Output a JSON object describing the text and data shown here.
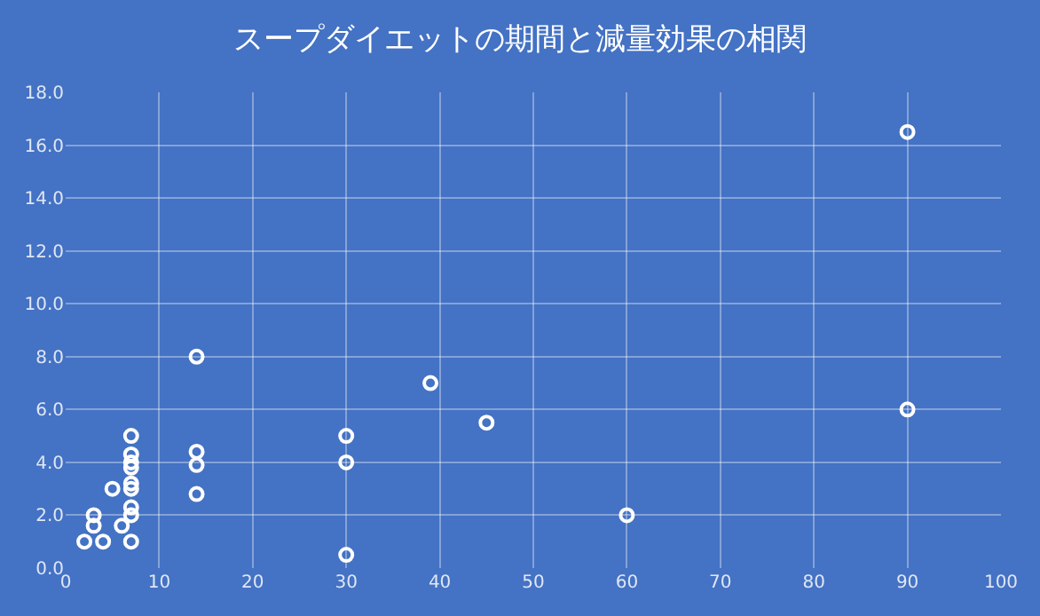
{
  "chart_data": {
    "type": "scatter",
    "title": "スープダイエットの期間と減量効果の相関",
    "x": [
      2,
      4,
      7,
      3,
      3,
      5,
      6,
      7,
      7,
      7,
      7,
      7,
      7,
      7,
      7,
      14,
      14,
      14,
      14,
      30,
      30,
      30,
      39,
      45,
      60,
      90,
      90
    ],
    "series": [
      {
        "color": "#ffffff",
        "values": [
          1.0,
          1.0,
          1.0,
          2.0,
          1.6,
          3.0,
          1.6,
          2.0,
          2.3,
          3.0,
          3.2,
          3.8,
          4.0,
          4.3,
          5.0,
          4.4,
          3.9,
          2.8,
          8.0,
          5.0,
          4.0,
          0.5,
          7.0,
          5.5,
          2.0,
          16.5,
          6.0
        ]
      }
    ],
    "xlim": [
      0,
      100
    ],
    "xticks": [
      0,
      10,
      20,
      30,
      40,
      50,
      60,
      70,
      80,
      90,
      100
    ],
    "ylim": [
      0,
      18
    ],
    "yticks": [
      {
        "value": 0,
        "label": "0.0"
      },
      {
        "value": 2,
        "label": "2.0"
      },
      {
        "value": 4,
        "label": "4.0"
      },
      {
        "value": 6,
        "label": "6.0"
      },
      {
        "value": 8,
        "label": "8.0"
      },
      {
        "value": 10,
        "label": "10.0"
      },
      {
        "value": 12,
        "label": "12.0"
      },
      {
        "value": 14,
        "label": "14.0"
      },
      {
        "value": 16,
        "label": "16.0"
      },
      {
        "value": 18,
        "label": "18.0"
      }
    ],
    "grid": true,
    "marker": "circle"
  }
}
